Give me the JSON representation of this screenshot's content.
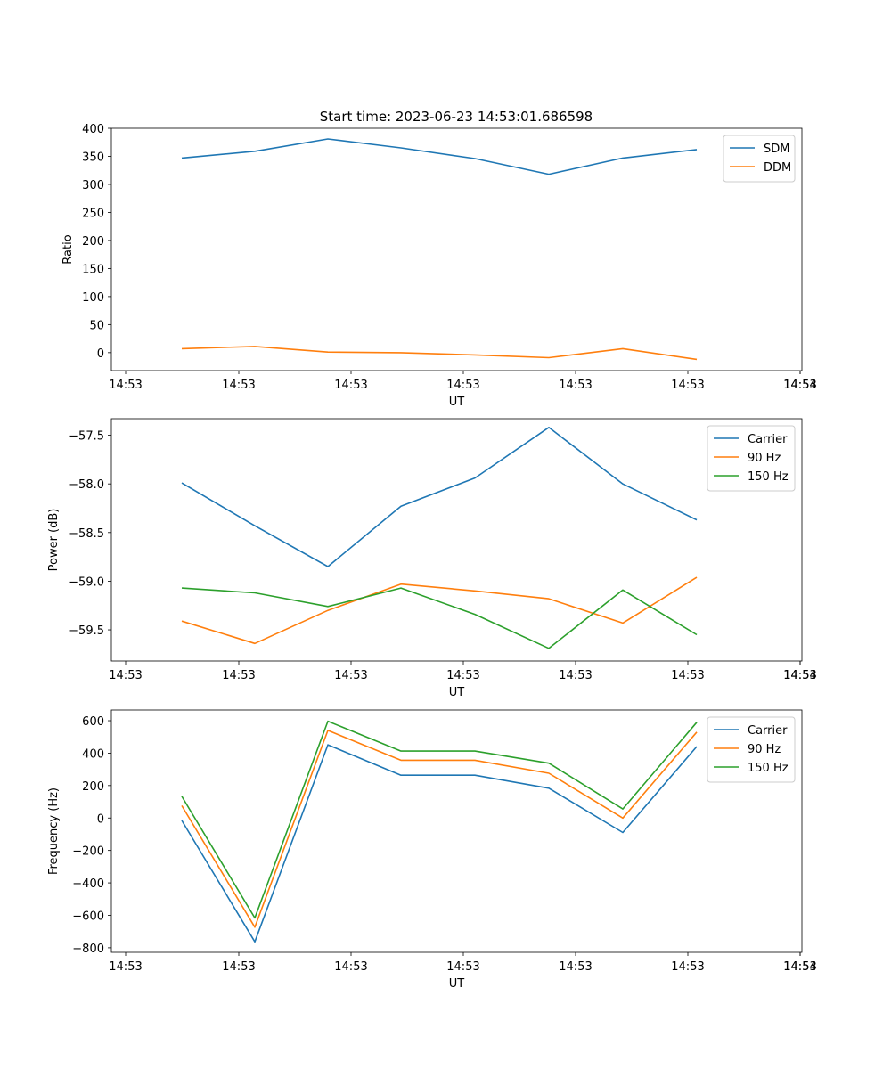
{
  "figure": {
    "title": "Start time: 2023-06-23 14:53:01.686598"
  },
  "chart_data": [
    {
      "type": "line",
      "title": "Start time: 2023-06-23 14:53:01.686598",
      "xlabel": "UT",
      "ylabel": "Ratio",
      "x_tick_labels": [
        "14:53",
        "14:53",
        "14:53",
        "14:53",
        "14:53",
        "14:53",
        "14:53",
        "14:54"
      ],
      "y_ticks": [
        0,
        50,
        100,
        150,
        200,
        250,
        300,
        350,
        400
      ],
      "y_tick_labels": [
        "0",
        "50",
        "100",
        "150",
        "200",
        "250",
        "300",
        "350",
        "400"
      ],
      "ylim": [
        -32,
        400
      ],
      "legend_position": "top-right",
      "colors": {
        "SDM": "#1f77b4",
        "DDM": "#ff7f0e"
      },
      "series": [
        {
          "name": "SDM",
          "values": [
            347,
            359,
            381,
            365,
            346,
            318,
            347,
            362
          ]
        },
        {
          "name": "DDM",
          "values": [
            7,
            11,
            1,
            0,
            -4,
            -9,
            7,
            -12
          ]
        }
      ]
    },
    {
      "type": "line",
      "xlabel": "UT",
      "ylabel": "Power (dB)",
      "x_tick_labels": [
        "14:53",
        "14:53",
        "14:53",
        "14:53",
        "14:53",
        "14:53",
        "14:53",
        "14:54"
      ],
      "y_ticks": [
        -57.5,
        -58.0,
        -58.5,
        -59.0,
        -59.5
      ],
      "y_tick_labels": [
        "−57.5",
        "−58.0",
        "−58.5",
        "−59.0",
        "−59.5"
      ],
      "ylim": [
        -59.82,
        -57.33
      ],
      "legend_position": "top-right",
      "colors": {
        "Carrier": "#1f77b4",
        "90 Hz": "#ff7f0e",
        "150 Hz": "#2ca02c"
      },
      "series": [
        {
          "name": "Carrier",
          "values": [
            -57.99,
            -58.43,
            -58.85,
            -58.23,
            -57.94,
            -57.42,
            -58.0,
            -58.37
          ]
        },
        {
          "name": "90 Hz",
          "values": [
            -59.41,
            -59.64,
            -59.3,
            -59.03,
            -59.1,
            -59.18,
            -59.43,
            -58.96
          ]
        },
        {
          "name": "150 Hz",
          "values": [
            -59.07,
            -59.12,
            -59.26,
            -59.07,
            -59.34,
            -59.69,
            -59.09,
            -59.55
          ]
        }
      ]
    },
    {
      "type": "line",
      "xlabel": "UT",
      "ylabel": "Frequency (Hz)",
      "x_tick_labels": [
        "14:53",
        "14:53",
        "14:53",
        "14:53",
        "14:53",
        "14:53",
        "14:53",
        "14:54"
      ],
      "y_ticks": [
        600,
        400,
        200,
        0,
        -200,
        -400,
        -600,
        -800
      ],
      "y_tick_labels": [
        "600",
        "400",
        "200",
        "0",
        "−200",
        "−400",
        "−600",
        "−800"
      ],
      "ylim": [
        -828,
        666
      ],
      "legend_position": "top-right",
      "colors": {
        "Carrier": "#1f77b4",
        "90 Hz": "#ff7f0e",
        "150 Hz": "#2ca02c"
      },
      "series": [
        {
          "name": "Carrier",
          "values": [
            -15,
            -763,
            451,
            264,
            264,
            184,
            -89,
            441
          ]
        },
        {
          "name": "90 Hz",
          "values": [
            76,
            -673,
            540,
            356,
            356,
            276,
            0,
            530
          ]
        },
        {
          "name": "150 Hz",
          "values": [
            134,
            -616,
            597,
            413,
            413,
            338,
            56,
            590
          ]
        }
      ]
    }
  ]
}
